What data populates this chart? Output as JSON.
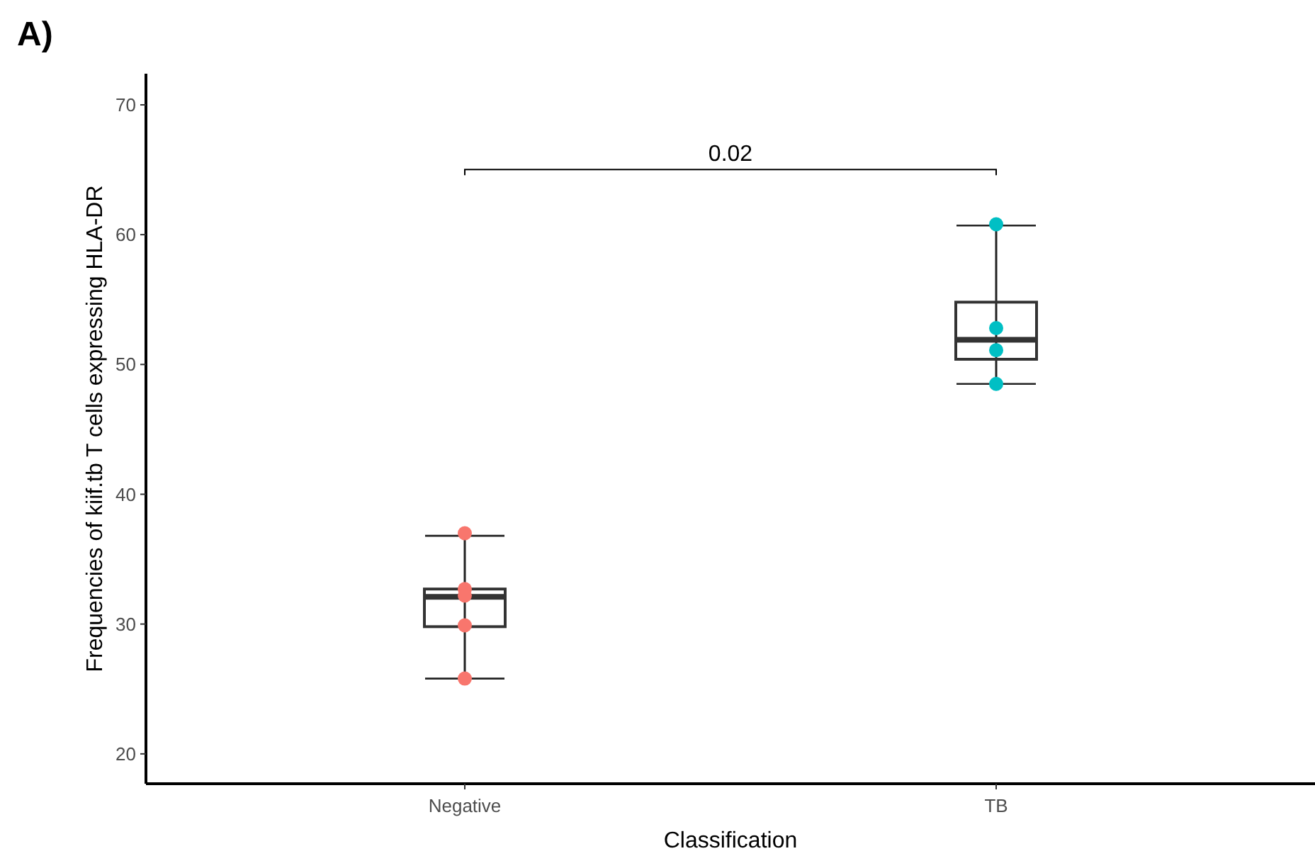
{
  "chart_data": {
    "type": "box",
    "xlabel": "Classification",
    "ylabel": "Frequencies of kiif.tb T cells expressing HLA-DR",
    "categories": [
      "Negative",
      "TB"
    ],
    "boxes": [
      {
        "low": 25.8,
        "q1": 29.8,
        "median": 32.1,
        "q3": 32.7,
        "high": 36.8
      },
      {
        "low": 48.5,
        "q1": 50.4,
        "median": 51.9,
        "q3": 54.8,
        "high": 60.7
      }
    ],
    "series": [
      {
        "type": "scatter",
        "color": "#f8766d",
        "x": [
          "Negative",
          "Negative",
          "Negative",
          "Negative",
          "Negative"
        ],
        "values": [
          37,
          32.7,
          32.2,
          29.9,
          25.8
        ]
      },
      {
        "type": "scatter",
        "color": "#00bfc4",
        "x": [
          "TB",
          "TB",
          "TB",
          "TB"
        ],
        "values": [
          60.8,
          52.8,
          51.1,
          48.5
        ]
      }
    ],
    "ylim": [
      17.7,
      72.4
    ],
    "yticks": [
      20,
      30,
      40,
      50,
      60,
      70
    ],
    "grid": false,
    "marker": "circle",
    "annotations": [
      "A)",
      "0.02"
    ]
  }
}
